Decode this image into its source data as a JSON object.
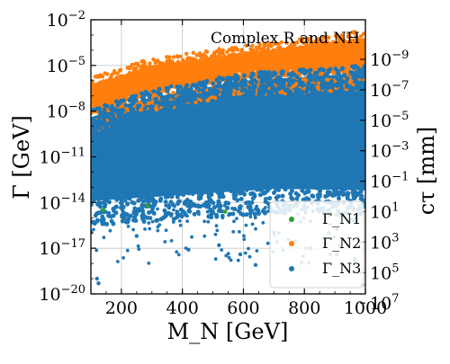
{
  "chart_data": {
    "type": "scatter",
    "annotation": "Complex R and NH",
    "xlabel": "M_N [GeV]",
    "ylabel_left": "Γ [GeV]",
    "ylabel_right": "cτ [mm]",
    "xlim": [
      100,
      1000
    ],
    "ylim_log10": [
      -20,
      -2
    ],
    "y_scale": "log",
    "grid": true,
    "legend_position": "bottom-right",
    "x_ticks": [
      "200",
      "400",
      "600",
      "800",
      "1000"
    ],
    "x_tick_values": [
      200,
      400,
      600,
      800,
      1000
    ],
    "y_left_tick_exponents": [
      -20,
      -17,
      -14,
      -11,
      -8,
      -5,
      -2
    ],
    "y_right_tick_exponents": [
      7,
      5,
      3,
      1,
      -1,
      -3,
      -5,
      -7,
      -9
    ],
    "series": [
      {
        "name": "Γ_N1",
        "color": "#2ca02c",
        "sample_points": [
          [
            140,
            -14.5
          ],
          [
            285,
            -14.2
          ],
          [
            540,
            -14.6
          ],
          [
            760,
            -14.3
          ],
          [
            905,
            -14.8
          ]
        ]
      },
      {
        "name": "Γ_N2",
        "color": "#ff7f0e",
        "band_lower_log10": [
          [
            100,
            -8.2
          ],
          [
            300,
            -6.8
          ],
          [
            600,
            -5.8
          ],
          [
            1000,
            -5.4
          ]
        ],
        "band_upper_log10": [
          [
            100,
            -6.3
          ],
          [
            300,
            -5.0
          ],
          [
            600,
            -4.2
          ],
          [
            1000,
            -3.2
          ]
        ]
      },
      {
        "name": "Γ_N3",
        "color": "#1f77b4",
        "band_lower_log10": [
          [
            100,
            -14.3
          ],
          [
            400,
            -13.9
          ],
          [
            700,
            -13.5
          ],
          [
            1000,
            -13.6
          ]
        ],
        "band_upper_log10": [
          [
            100,
            -8.4
          ],
          [
            300,
            -7.1
          ],
          [
            600,
            -6.0
          ],
          [
            1000,
            -5.5
          ]
        ],
        "sparse_points": [
          [
            120,
            -19.0
          ],
          [
            125,
            -19.3
          ],
          [
            250,
            -16.2
          ],
          [
            420,
            -17.1
          ],
          [
            520,
            -16.8
          ],
          [
            590,
            -17.4
          ],
          [
            640,
            -18.1
          ],
          [
            710,
            -16.6
          ],
          [
            820,
            -17.0
          ],
          [
            880,
            -16.0
          ],
          [
            960,
            -15.2
          ],
          [
            990,
            -19.4
          ]
        ]
      }
    ]
  }
}
